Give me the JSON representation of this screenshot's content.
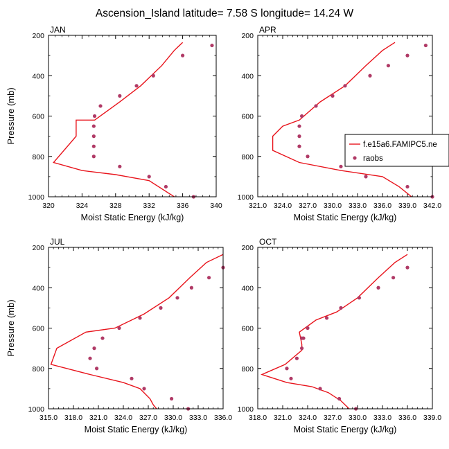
{
  "title": "Ascension_Island  latitude= 7.58 S longitude= 14.24 W",
  "colors": {
    "model": "#e8141c",
    "obs": "#b03a66"
  },
  "legend": {
    "model_label": "f.e15a6.FAMIPC5.ne",
    "obs_label": "raobs"
  },
  "chart_data": [
    {
      "type": "line",
      "panel": "JAN",
      "xlabel": "Moist Static Energy (kJ/kg)",
      "ylabel": "Pressure (mb)",
      "xlim": [
        320,
        340
      ],
      "ylim": [
        1000,
        200
      ],
      "xticks": [
        320,
        324,
        328,
        332,
        336,
        340
      ],
      "xtick_labels": [
        "320",
        "324",
        "328",
        "332",
        "336",
        "340"
      ],
      "yticks": [
        200,
        400,
        600,
        800,
        1000
      ],
      "series": [
        {
          "name": "f.e15a6.FAMIPC5.ne",
          "style": "line",
          "x": [
            336.0,
            335.0,
            333.5,
            331.0,
            328.5,
            325.5,
            323.3,
            323.3,
            323.3,
            320.6,
            324.0,
            328.0,
            332.0,
            335.0
          ],
          "y": [
            235,
            275,
            350,
            450,
            530,
            620,
            620,
            650,
            700,
            830,
            870,
            890,
            920,
            1000
          ]
        },
        {
          "name": "raobs",
          "style": "markers",
          "x": [
            339.5,
            336.0,
            332.5,
            330.5,
            328.5,
            326.2,
            325.5,
            325.4,
            325.4,
            325.4,
            325.4,
            328.5,
            332.0,
            334.0,
            337.3
          ],
          "y": [
            250,
            300,
            400,
            450,
            500,
            550,
            600,
            650,
            700,
            750,
            800,
            850,
            900,
            950,
            1000
          ]
        }
      ]
    },
    {
      "type": "line",
      "panel": "APR",
      "xlabel": "Moist Static Energy (kJ/kg)",
      "ylabel": "",
      "xlim": [
        321,
        342
      ],
      "ylim": [
        1000,
        200
      ],
      "xticks": [
        321,
        324,
        327,
        330,
        333,
        336,
        339,
        342
      ],
      "xtick_labels": [
        "321.0",
        "324.0",
        "327.0",
        "330.0",
        "333.0",
        "336.0",
        "339.0",
        "342.0"
      ],
      "yticks": [
        200,
        400,
        600,
        800,
        1000
      ],
      "series": [
        {
          "name": "f.e15a6.FAMIPC5.ne",
          "style": "line",
          "x": [
            337.5,
            336.0,
            334.0,
            331.5,
            328.5,
            326.0,
            324.0,
            322.8,
            322.8,
            326.0,
            331.0,
            336.0,
            338.0,
            339.5
          ],
          "y": [
            235,
            275,
            350,
            450,
            530,
            620,
            650,
            700,
            770,
            830,
            870,
            900,
            950,
            1000
          ]
        },
        {
          "name": "raobs",
          "style": "markers",
          "x": [
            341.2,
            339.0,
            336.7,
            334.5,
            331.5,
            330.0,
            328.0,
            326.3,
            326.0,
            326.0,
            326.0,
            326.0,
            327.0,
            331.0,
            334.0,
            339.0,
            342.0
          ],
          "y": [
            250,
            300,
            350,
            400,
            450,
            500,
            550,
            600,
            650,
            700,
            750,
            750,
            800,
            850,
            900,
            950,
            1000
          ]
        }
      ]
    },
    {
      "type": "line",
      "panel": "JUL",
      "xlabel": "Moist Static Energy (kJ/kg)",
      "ylabel": "Pressure (mb)",
      "xlim": [
        315,
        336
      ],
      "ylim": [
        1000,
        200
      ],
      "xticks": [
        315,
        318,
        321,
        324,
        327,
        330,
        333,
        336
      ],
      "xtick_labels": [
        "315.0",
        "318.0",
        "321.0",
        "324.0",
        "327.0",
        "330.0",
        "333.0",
        "336.0"
      ],
      "yticks": [
        200,
        400,
        600,
        800,
        1000
      ],
      "series": [
        {
          "name": "f.e15a6.FAMIPC5.ne",
          "style": "line",
          "x": [
            336.0,
            334.0,
            332.0,
            329.5,
            326.5,
            323.0,
            319.5,
            316.0,
            315.3,
            320.0,
            324.0,
            326.0,
            327.2,
            327.6,
            328.0
          ],
          "y": [
            235,
            275,
            350,
            450,
            530,
            600,
            620,
            700,
            780,
            830,
            870,
            900,
            950,
            980,
            1000
          ]
        },
        {
          "name": "raobs",
          "style": "markers",
          "x": [
            336.0,
            334.3,
            332.2,
            330.5,
            328.5,
            326.0,
            323.5,
            321.5,
            320.5,
            320.0,
            320.8,
            325.0,
            326.5,
            329.8,
            331.8
          ],
          "y": [
            300,
            350,
            400,
            450,
            500,
            550,
            600,
            650,
            700,
            750,
            800,
            850,
            900,
            950,
            1000
          ]
        }
      ]
    },
    {
      "type": "line",
      "panel": "OCT",
      "xlabel": "Moist Static Energy (kJ/kg)",
      "ylabel": "",
      "xlim": [
        318,
        339
      ],
      "ylim": [
        1000,
        200
      ],
      "xticks": [
        318,
        321,
        324,
        327,
        330,
        333,
        336,
        339
      ],
      "xtick_labels": [
        "318.0",
        "321.0",
        "324.0",
        "327.0",
        "330.0",
        "333.0",
        "336.0",
        "339.0"
      ],
      "yticks": [
        200,
        400,
        600,
        800,
        1000
      ],
      "series": [
        {
          "name": "f.e15a6.FAMIPC5.ne",
          "style": "line",
          "x": [
            336.0,
            334.5,
            332.5,
            330.0,
            327.5,
            325.0,
            323.0,
            323.3,
            323.3,
            321.3,
            318.5,
            321.5,
            324.5,
            326.5,
            328.0,
            329.0
          ],
          "y": [
            235,
            275,
            350,
            450,
            520,
            560,
            620,
            680,
            710,
            780,
            830,
            870,
            890,
            920,
            960,
            1000
          ]
        },
        {
          "name": "raobs",
          "style": "markers",
          "x": [
            336.0,
            334.3,
            332.5,
            330.2,
            328.0,
            326.3,
            324.0,
            323.5,
            323.3,
            323.3,
            322.7,
            321.5,
            322.0,
            325.5,
            327.8,
            329.8
          ],
          "y": [
            300,
            350,
            400,
            450,
            500,
            550,
            600,
            650,
            650,
            700,
            750,
            800,
            850,
            900,
            950,
            1000
          ]
        }
      ]
    }
  ]
}
